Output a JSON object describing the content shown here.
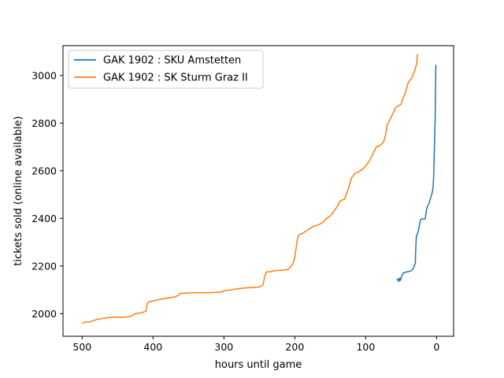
{
  "chart_data": {
    "type": "line",
    "title": "",
    "xlabel": "hours until game",
    "ylabel": "tickets sold (online available)",
    "xlim": [
      527,
      -24
    ],
    "ylim": [
      1905,
      3125
    ],
    "x_inverted": true,
    "xticks": [
      500,
      400,
      300,
      200,
      100,
      0
    ],
    "yticks": [
      2000,
      2200,
      2400,
      2600,
      2800,
      3000
    ],
    "grid": false,
    "legend_position": "top-left",
    "series": [
      {
        "name": "GAK 1902 : SKU Amstetten",
        "color": "#1f77b4",
        "x": [
          56,
          55,
          54,
          53,
          52,
          51,
          50,
          49,
          48,
          47,
          46,
          45,
          44,
          43,
          42,
          41,
          40,
          38,
          36,
          34,
          32,
          31,
          30,
          29.5,
          29,
          28.5,
          28,
          27,
          26,
          25,
          24,
          23,
          22,
          21,
          20,
          18,
          16,
          15.5,
          15,
          14,
          13,
          12,
          11,
          10,
          9,
          8,
          7,
          6,
          5.5,
          5,
          4.5,
          4,
          3.5,
          3,
          2.5,
          2,
          1.8,
          1.6,
          1.4,
          1.2,
          1.0
        ],
        "y": [
          2145,
          2140,
          2145,
          2135,
          2150,
          2140,
          2150,
          2160,
          2165,
          2170,
          2172,
          2172,
          2174,
          2175,
          2175,
          2175,
          2176,
          2178,
          2180,
          2185,
          2195,
          2205,
          2210,
          2260,
          2300,
          2320,
          2330,
          2335,
          2345,
          2360,
          2375,
          2390,
          2395,
          2398,
          2398,
          2398,
          2398,
          2410,
          2420,
          2440,
          2450,
          2455,
          2460,
          2470,
          2480,
          2490,
          2500,
          2510,
          2520,
          2530,
          2550,
          2590,
          2650,
          2700,
          2760,
          2820,
          2880,
          2930,
          2970,
          3010,
          3045
        ]
      },
      {
        "name": "GAK 1902 : SK Sturm Graz II",
        "color": "#ff7f0e",
        "x": [
          500,
          495,
          490,
          480,
          470,
          460,
          450,
          440,
          430,
          425,
          420,
          415,
          410,
          408,
          405,
          390,
          380,
          370,
          365,
          362,
          350,
          340,
          320,
          305,
          300,
          295,
          290,
          280,
          270,
          260,
          250,
          245,
          243,
          241,
          240,
          235,
          230,
          220,
          210,
          205,
          202,
          200,
          198,
          196,
          194,
          192,
          190,
          185,
          180,
          175,
          170,
          165,
          160,
          157,
          155,
          150,
          145,
          140,
          137,
          135,
          130,
          125,
          120,
          115,
          110,
          108,
          105,
          100,
          95,
          90,
          85,
          80,
          75,
          72,
          70,
          65,
          60,
          58,
          55,
          50,
          48,
          45,
          42,
          40,
          38,
          36,
          35,
          34,
          33,
          31,
          30,
          29,
          28,
          27.5,
          27
        ],
        "y": [
          1960,
          1965,
          1965,
          1975,
          1980,
          1985,
          1985,
          1985,
          1990,
          2000,
          2002,
          2005,
          2010,
          2045,
          2050,
          2060,
          2065,
          2070,
          2075,
          2085,
          2087,
          2088,
          2088,
          2090,
          2095,
          2098,
          2100,
          2105,
          2108,
          2110,
          2112,
          2120,
          2150,
          2170,
          2175,
          2175,
          2180,
          2182,
          2185,
          2200,
          2215,
          2240,
          2280,
          2320,
          2330,
          2335,
          2335,
          2345,
          2355,
          2365,
          2370,
          2375,
          2385,
          2395,
          2400,
          2410,
          2430,
          2450,
          2470,
          2475,
          2480,
          2520,
          2570,
          2590,
          2595,
          2600,
          2605,
          2620,
          2640,
          2670,
          2700,
          2705,
          2720,
          2750,
          2790,
          2820,
          2850,
          2865,
          2870,
          2880,
          2900,
          2920,
          2950,
          2970,
          2980,
          2985,
          2990,
          3000,
          3005,
          3020,
          3030,
          3040,
          3050,
          3070,
          3090
        ]
      }
    ]
  }
}
